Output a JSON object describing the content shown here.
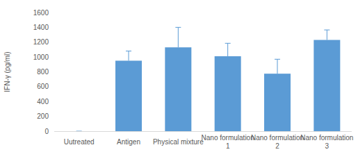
{
  "chart_data": {
    "type": "bar",
    "y_label": "IFN-γ (pg/ml)",
    "categories": [
      "Uutreated",
      "Antigen",
      "Physical mixture",
      "Nano formulation 1",
      "Nano formulation 2",
      "Nano formulation 3"
    ],
    "values": [
      0,
      950,
      1130,
      1010,
      775,
      1230
    ],
    "errors": [
      0,
      130,
      270,
      175,
      195,
      135
    ],
    "color": "#5b9bd5",
    "ylim": [
      0,
      1600
    ],
    "yticks": [
      0,
      200,
      400,
      600,
      800,
      1000,
      1200,
      1400,
      1600
    ],
    "grid": false
  }
}
